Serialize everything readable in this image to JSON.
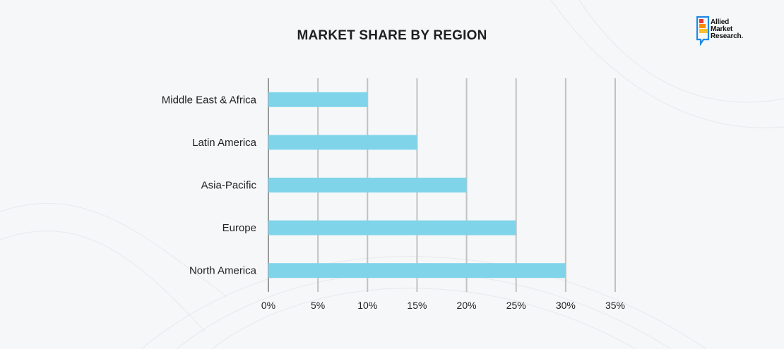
{
  "logo": {
    "line1": "Allied",
    "line2": "Market",
    "line3": "Research."
  },
  "colors": {
    "bar": "#80d4ea",
    "grid": "#c2c2c2",
    "axis": "#9a9a9a",
    "text": "#222222",
    "logo_blue": "#1e88e5",
    "logo_red": "#e53935",
    "logo_orange": "#fb8c00",
    "logo_yellow": "#fbc02d"
  },
  "chart_data": {
    "type": "bar",
    "orientation": "horizontal",
    "title": "MARKET SHARE BY REGION",
    "xlabel": "",
    "ylabel": "",
    "categories": [
      "Middle East & Africa",
      "Latin America",
      "Asia-Pacific",
      "Europe",
      "North America"
    ],
    "values": [
      10,
      15,
      20,
      25,
      30
    ],
    "xlim": [
      0,
      35
    ],
    "xticks": [
      0,
      5,
      10,
      15,
      20,
      25,
      30,
      35
    ],
    "xtick_labels": [
      "0%",
      "5%",
      "10%",
      "15%",
      "20%",
      "25%",
      "30%",
      "35%"
    ],
    "grid": "vertical",
    "legend": "none"
  }
}
